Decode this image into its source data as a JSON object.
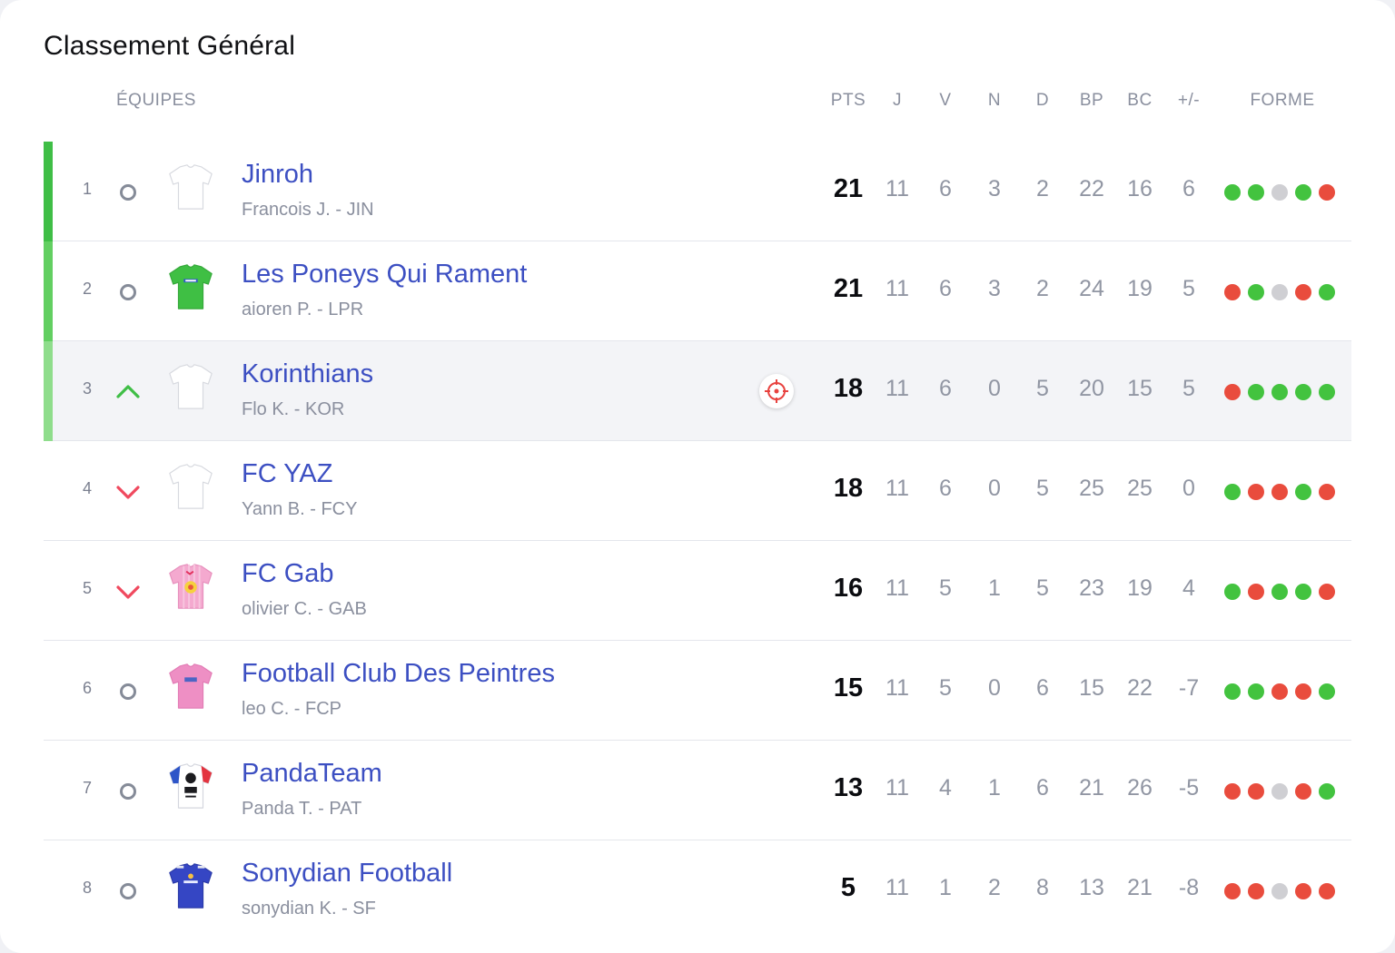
{
  "title": "Classement Général",
  "headers": {
    "team": "ÉQUIPES",
    "pts": "PTS",
    "j": "J",
    "v": "V",
    "n": "N",
    "d": "D",
    "bp": "BP",
    "bc": "BC",
    "diff": "+/-",
    "forme": "FORME"
  },
  "colors": {
    "win": "#43c33f",
    "loss": "#e94c3d",
    "draw": "#cfcfd3",
    "up": "#3fbe46",
    "down": "#f0495e",
    "link": "#3c4fc2"
  },
  "teams": [
    {
      "rank": "1",
      "movement": "same",
      "name": "Jinroh",
      "sub": "Francois J. - JIN",
      "pts": "21",
      "j": "11",
      "v": "6",
      "n": "3",
      "d": "2",
      "bp": "22",
      "bc": "16",
      "diff": "6",
      "form": [
        "W",
        "W",
        "D",
        "W",
        "L"
      ],
      "jersey": "white",
      "zone": "#3fbe46"
    },
    {
      "rank": "2",
      "movement": "same",
      "name": "Les Poneys Qui Rament",
      "sub": "aioren P. - LPR",
      "pts": "21",
      "j": "11",
      "v": "6",
      "n": "3",
      "d": "2",
      "bp": "24",
      "bc": "19",
      "diff": "5",
      "form": [
        "L",
        "W",
        "D",
        "L",
        "W"
      ],
      "jersey": "green",
      "zone": "#62cf61"
    },
    {
      "rank": "3",
      "movement": "up",
      "name": "Korinthians",
      "sub": "Flo K. - KOR",
      "pts": "18",
      "j": "11",
      "v": "6",
      "n": "0",
      "d": "5",
      "bp": "20",
      "bc": "15",
      "diff": "5",
      "form": [
        "L",
        "W",
        "W",
        "W",
        "W"
      ],
      "jersey": "white",
      "zone": "#8fdd8c",
      "highlight": true
    },
    {
      "rank": "4",
      "movement": "down",
      "name": "FC YAZ",
      "sub": "Yann B. - FCY",
      "pts": "18",
      "j": "11",
      "v": "6",
      "n": "0",
      "d": "5",
      "bp": "25",
      "bc": "25",
      "diff": "0",
      "form": [
        "W",
        "L",
        "L",
        "W",
        "L"
      ],
      "jersey": "white"
    },
    {
      "rank": "5",
      "movement": "down",
      "name": "FC Gab",
      "sub": "olivier C. - GAB",
      "pts": "16",
      "j": "11",
      "v": "5",
      "n": "1",
      "d": "5",
      "bp": "23",
      "bc": "19",
      "diff": "4",
      "form": [
        "W",
        "L",
        "W",
        "W",
        "L"
      ],
      "jersey": "pinkstripe"
    },
    {
      "rank": "6",
      "movement": "same",
      "name": "Football Club Des Peintres",
      "sub": "leo C. - FCP",
      "pts": "15",
      "j": "11",
      "v": "5",
      "n": "0",
      "d": "6",
      "bp": "15",
      "bc": "22",
      "diff": "-7",
      "form": [
        "W",
        "W",
        "L",
        "L",
        "W"
      ],
      "jersey": "pink"
    },
    {
      "rank": "7",
      "movement": "same",
      "name": "PandaTeam",
      "sub": "Panda T. - PAT",
      "pts": "13",
      "j": "11",
      "v": "4",
      "n": "1",
      "d": "6",
      "bp": "21",
      "bc": "26",
      "diff": "-5",
      "form": [
        "L",
        "L",
        "D",
        "L",
        "W"
      ],
      "jersey": "panda"
    },
    {
      "rank": "8",
      "movement": "same",
      "name": "Sonydian Football",
      "sub": "sonydian K. - SF",
      "pts": "5",
      "j": "11",
      "v": "1",
      "n": "2",
      "d": "8",
      "bp": "13",
      "bc": "21",
      "diff": "-8",
      "form": [
        "L",
        "L",
        "D",
        "L",
        "L"
      ],
      "jersey": "blue"
    }
  ]
}
